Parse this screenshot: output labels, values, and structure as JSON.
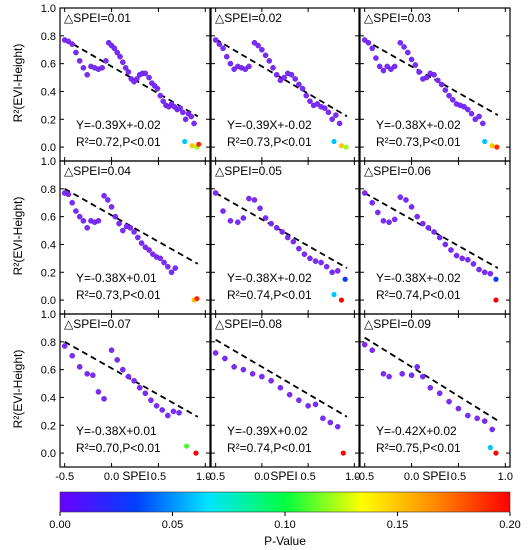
{
  "colorbar": {
    "label": "P-Value",
    "ticks": [
      "0.00",
      "0.05",
      "0.10",
      "0.15",
      "0.20"
    ],
    "range": [
      0,
      0.2
    ],
    "colors": [
      "#6a00ff",
      "#0040ff",
      "#00e5ff",
      "#00ff40",
      "#ffff00",
      "#ff8c00",
      "#ff0000"
    ]
  },
  "axes": {
    "xlabel": "SPEI",
    "ylabel": "R²(EVI-Height)",
    "x_ticks": [
      "-0.5",
      "0.0",
      "0.5",
      "1.0"
    ],
    "y_ticks": [
      "0.0",
      "0.2",
      "0.4",
      "0.6",
      "0.8",
      "1.0"
    ]
  },
  "chart_data": [
    {
      "type": "scatter",
      "title": "△SPEI=0.01",
      "equation": "Y=-0.39X+-0.02",
      "stats": "R²=0.72,P<0.01",
      "xlim": [
        -0.55,
        1.05
      ],
      "ylim": [
        -0.1,
        1.0
      ],
      "fit": {
        "slope": -0.39,
        "intercept": -0.02
      },
      "points": [
        [
          -0.5,
          0.77
        ],
        [
          -0.46,
          0.76
        ],
        [
          -0.42,
          0.74
        ],
        [
          -0.38,
          0.68
        ],
        [
          -0.34,
          0.62
        ],
        [
          -0.3,
          0.57
        ],
        [
          -0.26,
          0.52
        ],
        [
          -0.22,
          0.58
        ],
        [
          -0.18,
          0.57
        ],
        [
          -0.14,
          0.56
        ],
        [
          -0.1,
          0.57
        ],
        [
          -0.06,
          0.62
        ],
        [
          -0.03,
          0.75
        ],
        [
          0.0,
          0.73
        ],
        [
          0.03,
          0.71
        ],
        [
          0.06,
          0.68
        ],
        [
          0.09,
          0.65
        ],
        [
          0.12,
          0.61
        ],
        [
          0.15,
          0.57
        ],
        [
          0.18,
          0.54
        ],
        [
          0.21,
          0.49
        ],
        [
          0.24,
          0.47
        ],
        [
          0.27,
          0.49
        ],
        [
          0.3,
          0.52
        ],
        [
          0.33,
          0.53
        ],
        [
          0.36,
          0.53
        ],
        [
          0.4,
          0.5
        ],
        [
          0.43,
          0.46
        ],
        [
          0.46,
          0.44
        ],
        [
          0.49,
          0.42
        ],
        [
          0.52,
          0.37
        ],
        [
          0.55,
          0.33
        ],
        [
          0.58,
          0.3
        ],
        [
          0.61,
          0.29
        ],
        [
          0.64,
          0.31
        ],
        [
          0.67,
          0.29
        ],
        [
          0.7,
          0.27
        ],
        [
          0.73,
          0.28
        ],
        [
          0.76,
          0.25
        ],
        [
          0.79,
          0.2
        ],
        [
          0.82,
          0.24
        ],
        [
          0.85,
          0.22
        ],
        [
          0.88,
          0.17
        ]
      ],
      "highp": [
        [
          0.78,
          0.04,
          0.06
        ],
        [
          0.86,
          0.01,
          0.15
        ],
        [
          0.91,
          0.0,
          0.12
        ],
        [
          0.93,
          0.02,
          0.19
        ]
      ]
    },
    {
      "type": "scatter",
      "title": "△SPEI=0.02",
      "equation": "Y=-0.39X+-0.02",
      "stats": "R²=0.73,P<0.01",
      "xlim": [
        -0.55,
        1.05
      ],
      "ylim": [
        -0.1,
        1.0
      ],
      "fit": {
        "slope": -0.39,
        "intercept": -0.02
      },
      "points": [
        [
          -0.5,
          0.77
        ],
        [
          -0.46,
          0.74
        ],
        [
          -0.42,
          0.71
        ],
        [
          -0.38,
          0.65
        ],
        [
          -0.34,
          0.6
        ],
        [
          -0.3,
          0.56
        ],
        [
          -0.26,
          0.58
        ],
        [
          -0.22,
          0.57
        ],
        [
          -0.18,
          0.56
        ],
        [
          -0.14,
          0.58
        ],
        [
          -0.08,
          0.75
        ],
        [
          -0.04,
          0.73
        ],
        [
          0.0,
          0.7
        ],
        [
          0.04,
          0.66
        ],
        [
          0.08,
          0.62
        ],
        [
          0.12,
          0.57
        ],
        [
          0.16,
          0.52
        ],
        [
          0.2,
          0.48
        ],
        [
          0.24,
          0.5
        ],
        [
          0.28,
          0.53
        ],
        [
          0.32,
          0.52
        ],
        [
          0.36,
          0.49
        ],
        [
          0.4,
          0.45
        ],
        [
          0.44,
          0.42
        ],
        [
          0.48,
          0.37
        ],
        [
          0.52,
          0.33
        ],
        [
          0.56,
          0.3
        ],
        [
          0.6,
          0.31
        ],
        [
          0.64,
          0.29
        ],
        [
          0.68,
          0.28
        ],
        [
          0.72,
          0.25
        ],
        [
          0.76,
          0.2
        ],
        [
          0.8,
          0.23
        ],
        [
          0.84,
          0.17
        ]
      ],
      "highp": [
        [
          0.78,
          0.04,
          0.06
        ],
        [
          0.86,
          0.01,
          0.15
        ],
        [
          0.91,
          0.0,
          0.12
        ]
      ]
    },
    {
      "type": "scatter",
      "title": "△SPEI=0.03",
      "equation": "Y=-0.38X+-0.02",
      "stats": "R²=0.73,P<0.01",
      "xlim": [
        -0.55,
        1.05
      ],
      "ylim": [
        -0.1,
        1.0
      ],
      "fit": {
        "slope": -0.38,
        "intercept": -0.02
      },
      "points": [
        [
          -0.5,
          0.77
        ],
        [
          -0.46,
          0.75
        ],
        [
          -0.42,
          0.71
        ],
        [
          -0.38,
          0.64
        ],
        [
          -0.34,
          0.58
        ],
        [
          -0.3,
          0.55
        ],
        [
          -0.26,
          0.58
        ],
        [
          -0.22,
          0.56
        ],
        [
          -0.18,
          0.58
        ],
        [
          -0.12,
          0.75
        ],
        [
          -0.08,
          0.72
        ],
        [
          -0.04,
          0.68
        ],
        [
          0.0,
          0.63
        ],
        [
          0.04,
          0.59
        ],
        [
          0.08,
          0.54
        ],
        [
          0.12,
          0.49
        ],
        [
          0.16,
          0.5
        ],
        [
          0.2,
          0.53
        ],
        [
          0.24,
          0.52
        ],
        [
          0.28,
          0.48
        ],
        [
          0.32,
          0.45
        ],
        [
          0.36,
          0.41
        ],
        [
          0.4,
          0.37
        ],
        [
          0.44,
          0.34
        ],
        [
          0.48,
          0.31
        ],
        [
          0.52,
          0.3
        ],
        [
          0.56,
          0.29
        ],
        [
          0.6,
          0.27
        ],
        [
          0.64,
          0.24
        ],
        [
          0.68,
          0.2
        ],
        [
          0.72,
          0.22
        ],
        [
          0.76,
          0.17
        ]
      ],
      "highp": [
        [
          0.78,
          0.04,
          0.06
        ],
        [
          0.86,
          0.01,
          0.15
        ],
        [
          0.91,
          0.0,
          0.19
        ]
      ]
    },
    {
      "type": "scatter",
      "title": "△SPEI=0.04",
      "equation": "Y=-0.38X+0.01",
      "stats": "R²=0.73,P<0.01",
      "xlim": [
        -0.55,
        1.05
      ],
      "ylim": [
        -0.1,
        1.0
      ],
      "fit": {
        "slope": -0.38,
        "intercept": 0.01
      },
      "points": [
        [
          -0.5,
          0.77
        ],
        [
          -0.46,
          0.76
        ],
        [
          -0.42,
          0.7
        ],
        [
          -0.38,
          0.64
        ],
        [
          -0.34,
          0.6
        ],
        [
          -0.3,
          0.57
        ],
        [
          -0.26,
          0.52
        ],
        [
          -0.22,
          0.57
        ],
        [
          -0.18,
          0.56
        ],
        [
          -0.14,
          0.57
        ],
        [
          -0.08,
          0.75
        ],
        [
          -0.04,
          0.72
        ],
        [
          0.0,
          0.67
        ],
        [
          0.04,
          0.6
        ],
        [
          0.08,
          0.55
        ],
        [
          0.12,
          0.5
        ],
        [
          0.16,
          0.53
        ],
        [
          0.2,
          0.52
        ],
        [
          0.24,
          0.49
        ],
        [
          0.28,
          0.45
        ],
        [
          0.32,
          0.41
        ],
        [
          0.36,
          0.38
        ],
        [
          0.4,
          0.36
        ],
        [
          0.44,
          0.33
        ],
        [
          0.48,
          0.31
        ],
        [
          0.52,
          0.3
        ],
        [
          0.56,
          0.27
        ],
        [
          0.6,
          0.24
        ],
        [
          0.64,
          0.2
        ],
        [
          0.68,
          0.23
        ]
      ],
      "highp": [
        [
          0.88,
          0.0,
          0.15
        ],
        [
          0.91,
          0.01,
          0.19
        ]
      ]
    },
    {
      "type": "scatter",
      "title": "△SPEI=0.05",
      "equation": "Y=-0.38X+-0.02",
      "stats": "R²=0.74,P<0.01",
      "xlim": [
        -0.55,
        1.05
      ],
      "ylim": [
        -0.1,
        1.0
      ],
      "fit": {
        "slope": -0.38,
        "intercept": -0.02
      },
      "points": [
        [
          -0.5,
          0.77
        ],
        [
          -0.42,
          0.64
        ],
        [
          -0.34,
          0.57
        ],
        [
          -0.26,
          0.56
        ],
        [
          -0.2,
          0.59
        ],
        [
          -0.14,
          0.73
        ],
        [
          -0.08,
          0.72
        ],
        [
          -0.02,
          0.66
        ],
        [
          0.04,
          0.59
        ],
        [
          0.1,
          0.55
        ],
        [
          0.16,
          0.52
        ],
        [
          0.22,
          0.49
        ],
        [
          0.28,
          0.45
        ],
        [
          0.34,
          0.42
        ],
        [
          0.4,
          0.37
        ],
        [
          0.46,
          0.33
        ],
        [
          0.52,
          0.3
        ],
        [
          0.58,
          0.28
        ],
        [
          0.64,
          0.27
        ],
        [
          0.7,
          0.24
        ],
        [
          0.76,
          0.2
        ],
        [
          0.82,
          0.21
        ]
      ],
      "highp": [
        [
          0.9,
          0.15,
          0.03
        ],
        [
          0.78,
          0.04,
          0.06
        ],
        [
          0.86,
          0.0,
          0.2
        ]
      ]
    },
    {
      "type": "scatter",
      "title": "△SPEI=0.06",
      "equation": "Y=-0.38X+-0.02",
      "stats": "R²=0.74,P<0.01",
      "xlim": [
        -0.55,
        1.05
      ],
      "ylim": [
        -0.1,
        1.0
      ],
      "fit": {
        "slope": -0.38,
        "intercept": -0.02
      },
      "points": [
        [
          -0.5,
          0.77
        ],
        [
          -0.42,
          0.7
        ],
        [
          -0.36,
          0.63
        ],
        [
          -0.3,
          0.57
        ],
        [
          -0.24,
          0.56
        ],
        [
          -0.18,
          0.58
        ],
        [
          -0.12,
          0.74
        ],
        [
          -0.06,
          0.72
        ],
        [
          0.0,
          0.67
        ],
        [
          0.06,
          0.6
        ],
        [
          0.12,
          0.55
        ],
        [
          0.18,
          0.52
        ],
        [
          0.24,
          0.49
        ],
        [
          0.3,
          0.45
        ],
        [
          0.36,
          0.4
        ],
        [
          0.42,
          0.36
        ],
        [
          0.48,
          0.32
        ],
        [
          0.54,
          0.3
        ],
        [
          0.6,
          0.29
        ],
        [
          0.66,
          0.26
        ],
        [
          0.72,
          0.22
        ],
        [
          0.78,
          0.2
        ],
        [
          0.84,
          0.19
        ]
      ],
      "highp": [
        [
          0.9,
          0.15,
          0.03
        ],
        [
          0.9,
          0.0,
          0.2
        ]
      ]
    },
    {
      "type": "scatter",
      "title": "△SPEI=0.07",
      "equation": "Y=-0.38X+0.01",
      "stats": "R²=0.70,P<0.01",
      "xlim": [
        -0.55,
        1.05
      ],
      "ylim": [
        -0.1,
        1.0
      ],
      "fit": {
        "slope": -0.38,
        "intercept": 0.01
      },
      "points": [
        [
          -0.5,
          0.77
        ],
        [
          -0.42,
          0.7
        ],
        [
          -0.34,
          0.62
        ],
        [
          -0.26,
          0.57
        ],
        [
          -0.2,
          0.56
        ],
        [
          -0.14,
          0.44
        ],
        [
          -0.08,
          0.39
        ],
        [
          0.0,
          0.74
        ],
        [
          0.06,
          0.67
        ],
        [
          0.12,
          0.6
        ],
        [
          0.18,
          0.55
        ],
        [
          0.24,
          0.52
        ],
        [
          0.3,
          0.47
        ],
        [
          0.36,
          0.43
        ],
        [
          0.42,
          0.38
        ],
        [
          0.48,
          0.34
        ],
        [
          0.54,
          0.31
        ],
        [
          0.6,
          0.27
        ],
        [
          0.66,
          0.3
        ],
        [
          0.72,
          0.29
        ]
      ],
      "highp": [
        [
          0.8,
          0.05,
          0.11
        ],
        [
          0.9,
          0.0,
          0.2
        ]
      ]
    },
    {
      "type": "scatter",
      "title": "△SPEI=0.08",
      "equation": "Y=-0.39X+0.02",
      "stats": "R²=0.74,P<0.01",
      "xlim": [
        -0.55,
        1.05
      ],
      "ylim": [
        -0.1,
        1.0
      ],
      "fit": {
        "slope": -0.39,
        "intercept": 0.02
      },
      "points": [
        [
          -0.5,
          0.72
        ],
        [
          -0.4,
          0.68
        ],
        [
          -0.3,
          0.62
        ],
        [
          -0.2,
          0.6
        ],
        [
          -0.1,
          0.57
        ],
        [
          0.0,
          0.55
        ],
        [
          0.1,
          0.52
        ],
        [
          0.2,
          0.47
        ],
        [
          0.3,
          0.42
        ],
        [
          0.4,
          0.38
        ],
        [
          0.5,
          0.34
        ],
        [
          0.58,
          0.35
        ],
        [
          0.66,
          0.25
        ],
        [
          0.74,
          0.22
        ],
        [
          0.82,
          0.19
        ]
      ],
      "highp": [
        [
          0.88,
          0.0,
          0.2
        ]
      ]
    },
    {
      "type": "scatter",
      "title": "△SPEI=0.09",
      "equation": "Y=-0.42X+0.02",
      "stats": "R²=0.75,P<0.01",
      "xlim": [
        -0.55,
        1.05
      ],
      "ylim": [
        -0.1,
        1.0
      ],
      "fit": {
        "slope": -0.42,
        "intercept": 0.02
      },
      "points": [
        [
          -0.5,
          0.78
        ],
        [
          -0.42,
          0.74
        ],
        [
          -0.3,
          0.57
        ],
        [
          -0.24,
          0.55
        ],
        [
          -0.1,
          0.57
        ],
        [
          0.0,
          0.56
        ],
        [
          0.06,
          0.62
        ],
        [
          0.12,
          0.55
        ],
        [
          0.2,
          0.47
        ],
        [
          0.3,
          0.43
        ],
        [
          0.4,
          0.37
        ],
        [
          0.5,
          0.32
        ],
        [
          0.6,
          0.27
        ],
        [
          0.7,
          0.25
        ],
        [
          0.78,
          0.23
        ],
        [
          0.86,
          0.17
        ]
      ],
      "highp": [
        [
          0.84,
          0.04,
          0.06
        ],
        [
          0.9,
          0.0,
          0.2
        ]
      ]
    }
  ]
}
